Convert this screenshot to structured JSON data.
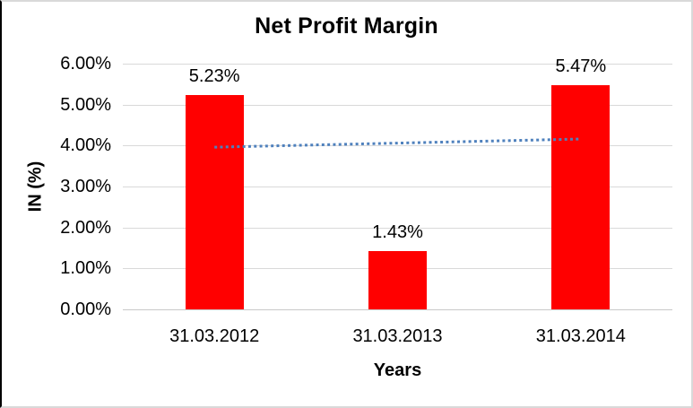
{
  "chart_data": {
    "type": "bar",
    "title": "Net Profit Margin",
    "xlabel": "Years",
    "ylabel": "IN (%)",
    "categories": [
      "31.03.2012",
      "31.03.2013",
      "31.03.2014"
    ],
    "values": [
      5.23,
      1.43,
      5.47
    ],
    "value_labels": [
      "5.23%",
      "1.43%",
      "5.47%"
    ],
    "yticks": [
      "0.00%",
      "1.00%",
      "2.00%",
      "3.00%",
      "4.00%",
      "5.00%",
      "6.00%"
    ],
    "ylim": [
      0,
      6
    ],
    "grid": true,
    "legend_position": "none",
    "bar_color": "#ff0000",
    "gridline_color": "#d9d9d9",
    "axis_line_color": "#c9c9c9",
    "trendline": {
      "type": "linear",
      "style": "dotted",
      "color": "#4f81bd",
      "start_value": 3.96,
      "end_value": 4.16
    }
  }
}
